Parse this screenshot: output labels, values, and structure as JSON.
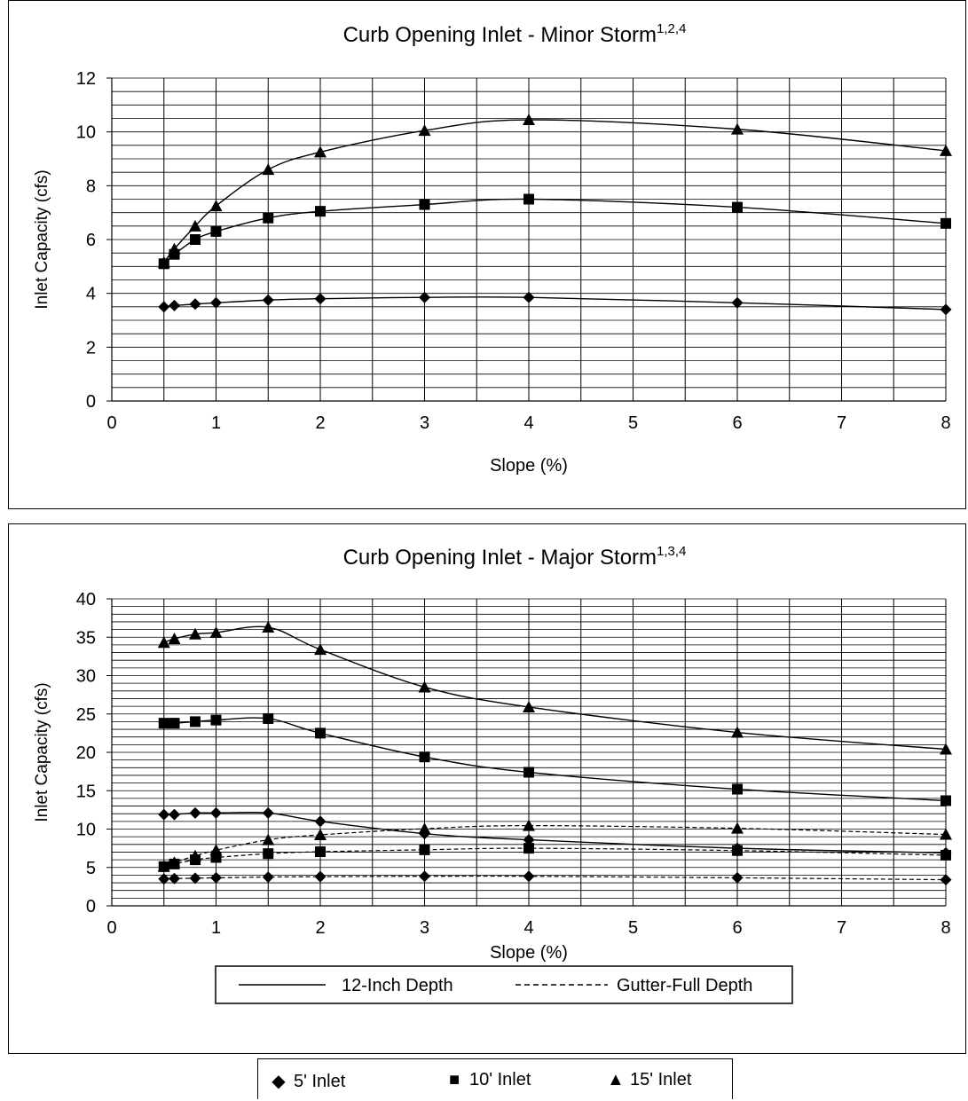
{
  "chart_data": [
    {
      "type": "line",
      "title": "Curb Opening Inlet - Minor Storm",
      "title_superscript": "1,2,4",
      "xlabel": "Slope (%)",
      "ylabel": "Inlet Capacity (cfs)",
      "xlim": [
        0,
        8
      ],
      "ylim": [
        0,
        12
      ],
      "xticks": [
        0,
        1,
        2,
        3,
        4,
        5,
        6,
        7,
        8
      ],
      "yticks": [
        0,
        2,
        4,
        6,
        8,
        10,
        12
      ],
      "grid": true,
      "x": [
        0.5,
        0.6,
        0.8,
        1,
        1.5,
        2,
        3,
        4,
        6,
        8
      ],
      "series": [
        {
          "name": "5' Inlet",
          "marker": "diamond",
          "line": "solid",
          "values": [
            3.5,
            3.55,
            3.6,
            3.65,
            3.75,
            3.8,
            3.85,
            3.85,
            3.65,
            3.4
          ]
        },
        {
          "name": "10' Inlet",
          "marker": "square",
          "line": "solid",
          "values": [
            5.1,
            5.45,
            6.0,
            6.3,
            6.8,
            7.05,
            7.3,
            7.5,
            7.2,
            6.6
          ]
        },
        {
          "name": "15' Inlet",
          "marker": "triangle",
          "line": "solid",
          "values": [
            5.15,
            5.65,
            6.5,
            7.25,
            8.6,
            9.25,
            10.05,
            10.45,
            10.1,
            9.3
          ]
        }
      ]
    },
    {
      "type": "line",
      "title": "Curb Opening Inlet - Major Storm",
      "title_superscript": "1,3,4",
      "xlabel": "Slope (%)",
      "ylabel": "Inlet Capacity (cfs)",
      "xlim": [
        0,
        8
      ],
      "ylim": [
        0,
        40
      ],
      "xticks": [
        0,
        1,
        2,
        3,
        4,
        5,
        6,
        7,
        8
      ],
      "yticks": [
        0,
        5,
        10,
        15,
        20,
        25,
        30,
        35,
        40
      ],
      "grid": true,
      "x": [
        0.5,
        0.6,
        0.8,
        1,
        1.5,
        2,
        3,
        4,
        6,
        8
      ],
      "series": [
        {
          "name": "5' Inlet",
          "group": "12-Inch Depth",
          "marker": "diamond",
          "line": "solid",
          "values": [
            11.9,
            11.9,
            12.1,
            12.1,
            12.1,
            11.0,
            9.4,
            8.6,
            7.5,
            6.9
          ]
        },
        {
          "name": "10' Inlet",
          "group": "12-Inch Depth",
          "marker": "square",
          "line": "solid",
          "values": [
            23.8,
            23.8,
            24.0,
            24.2,
            24.4,
            22.5,
            19.4,
            17.4,
            15.2,
            13.7
          ]
        },
        {
          "name": "15' Inlet",
          "group": "12-Inch Depth",
          "marker": "triangle",
          "line": "solid",
          "values": [
            34.3,
            34.8,
            35.4,
            35.6,
            36.3,
            33.4,
            28.5,
            25.9,
            22.6,
            20.4
          ]
        },
        {
          "name": "5' Inlet",
          "group": "Gutter-Full Depth",
          "marker": "diamond",
          "line": "dashed",
          "values": [
            3.5,
            3.55,
            3.6,
            3.65,
            3.75,
            3.8,
            3.85,
            3.85,
            3.65,
            3.4
          ]
        },
        {
          "name": "10' Inlet",
          "group": "Gutter-Full Depth",
          "marker": "square",
          "line": "dashed",
          "values": [
            5.1,
            5.45,
            6.0,
            6.3,
            6.8,
            7.05,
            7.3,
            7.5,
            7.2,
            6.6
          ]
        },
        {
          "name": "15' Inlet",
          "group": "Gutter-Full Depth",
          "marker": "triangle",
          "line": "dashed",
          "values": [
            5.15,
            5.65,
            6.5,
            7.25,
            8.6,
            9.25,
            10.05,
            10.45,
            10.1,
            9.3
          ]
        }
      ],
      "legend": {
        "placement": "bottom",
        "entries": [
          {
            "label": "12-Inch Depth",
            "line": "solid"
          },
          {
            "label": "Gutter-Full Depth",
            "line": "dashed"
          }
        ]
      }
    }
  ],
  "marker_legend": [
    {
      "label": "5' Inlet",
      "symbol": "◆"
    },
    {
      "label": "10' Inlet",
      "symbol": "■"
    },
    {
      "label": "15' Inlet",
      "symbol": "▲"
    }
  ]
}
